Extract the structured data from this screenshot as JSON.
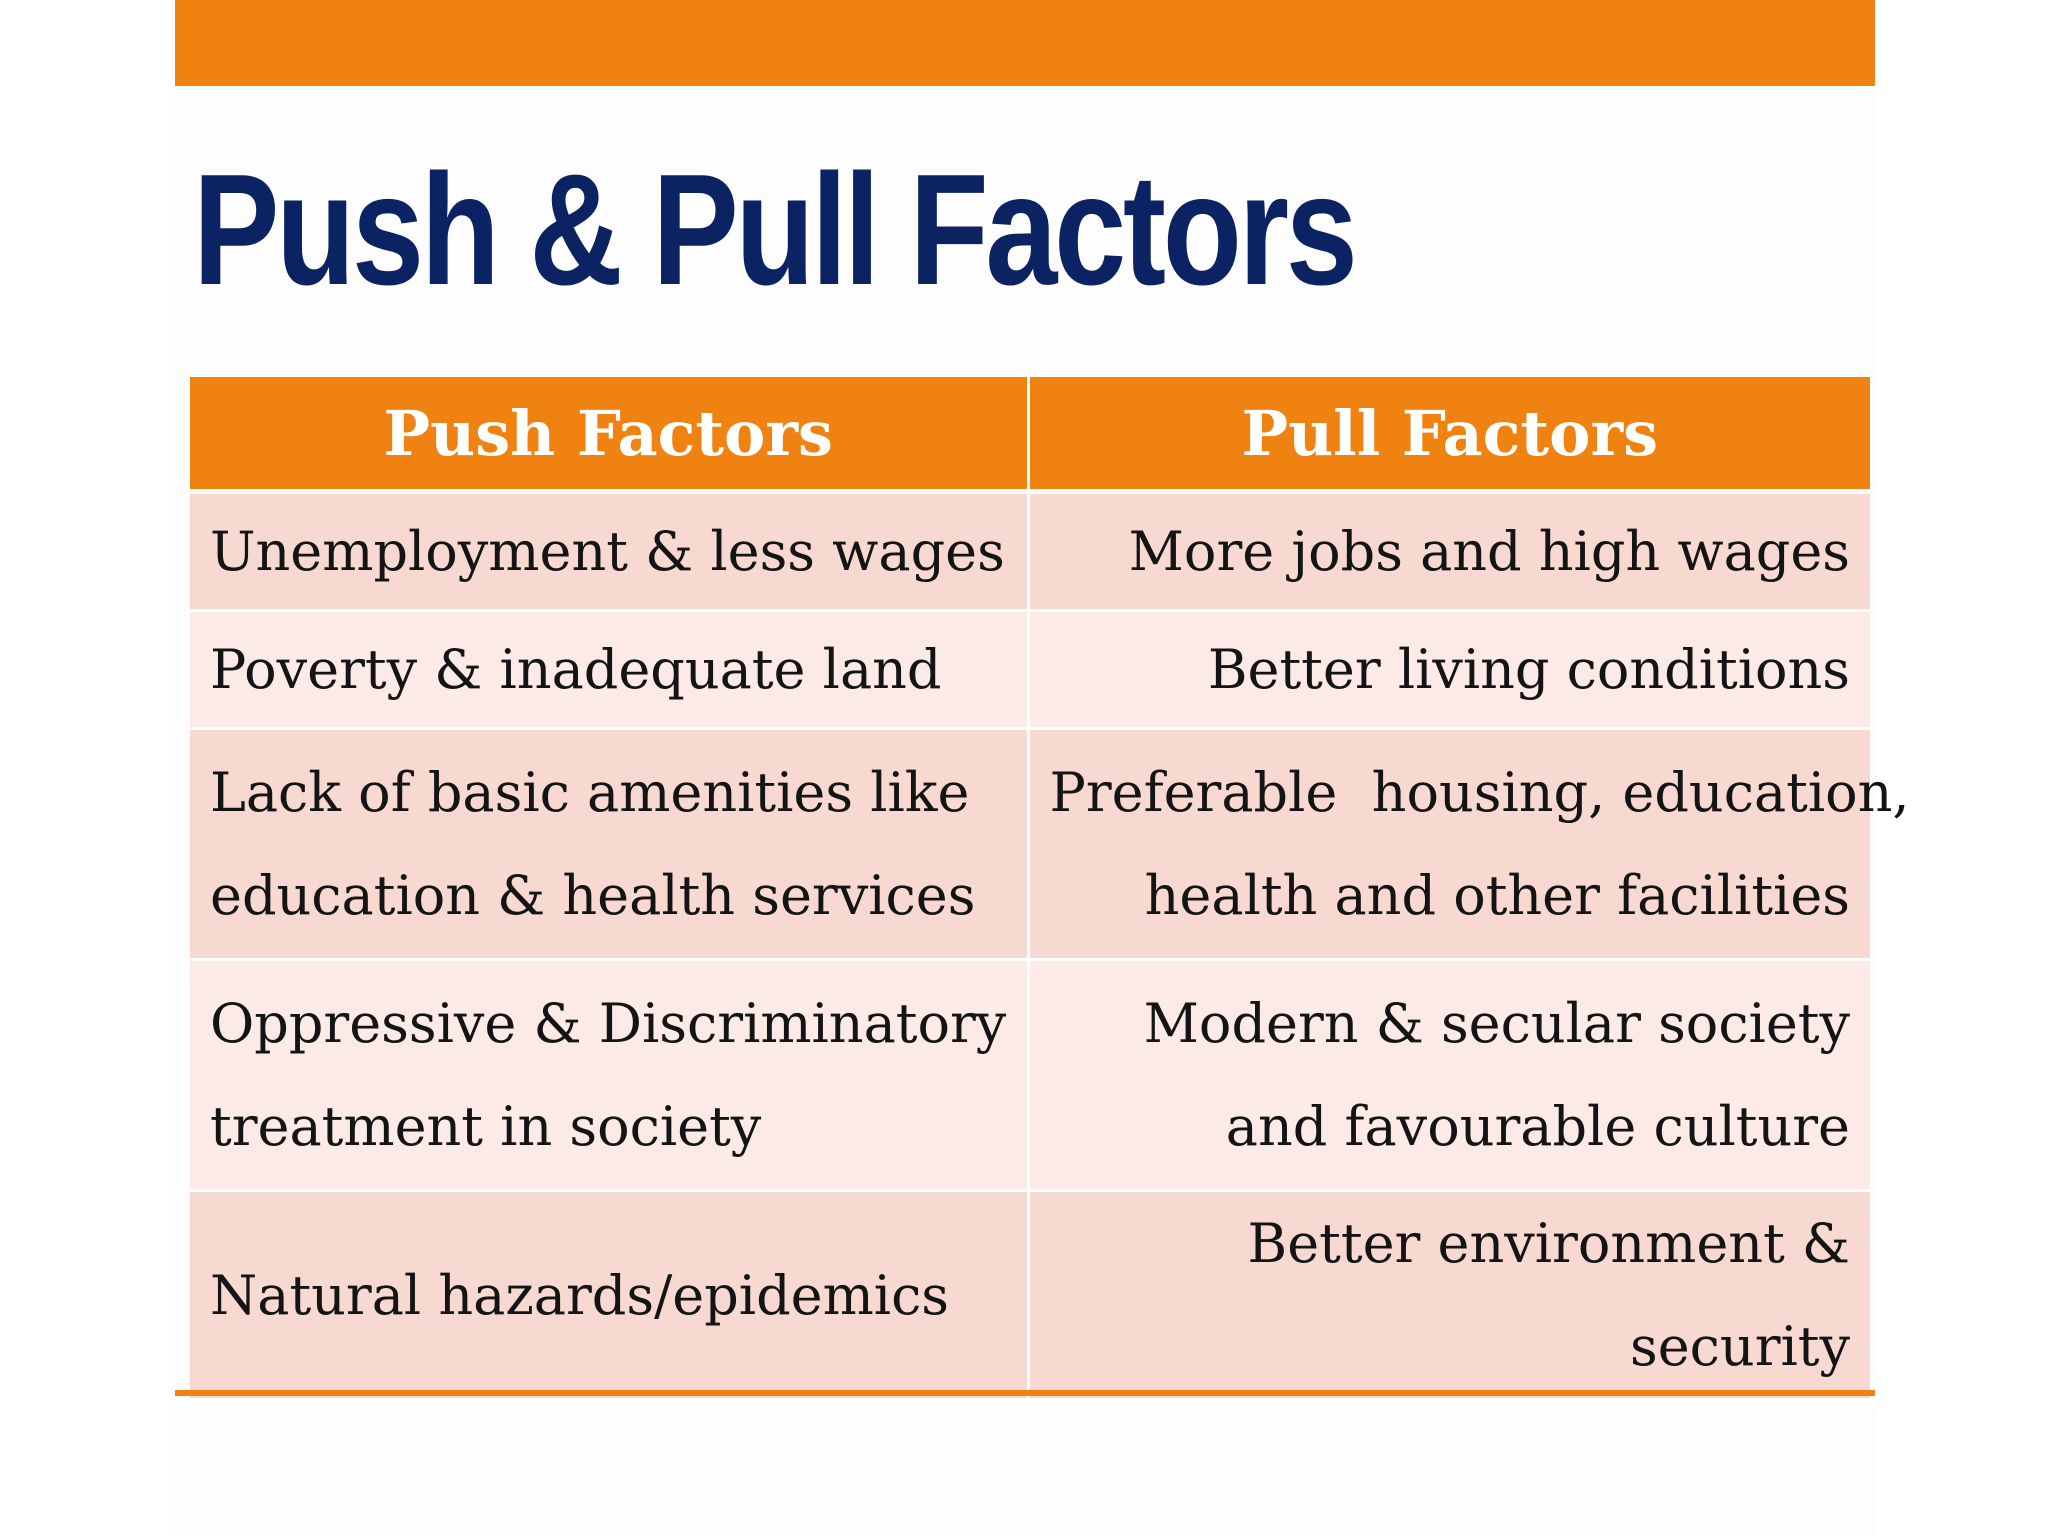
{
  "slide": {
    "title": "Push & Pull Factors",
    "accent_color": "#f08212",
    "title_color": "#0b2263"
  },
  "table": {
    "headers": [
      "Push Factors",
      "Pull Factors"
    ],
    "rows": [
      {
        "push": [
          "Unemployment & less wages"
        ],
        "pull": [
          "More jobs and high wages"
        ]
      },
      {
        "push": [
          "Poverty & inadequate land"
        ],
        "pull": [
          "Better living conditions"
        ]
      },
      {
        "push": [
          "Lack of basic amenities like",
          "education & health services"
        ],
        "pull": [
          "Preferable  housing, education,",
          "health and other facilities"
        ]
      },
      {
        "push": [
          "Oppressive & Discriminatory",
          "treatment in society"
        ],
        "pull": [
          "Modern & secular society",
          "and favourable culture"
        ]
      },
      {
        "push": [
          "Natural hazards/epidemics"
        ],
        "pull": [
          "Better environment & security"
        ]
      }
    ]
  }
}
